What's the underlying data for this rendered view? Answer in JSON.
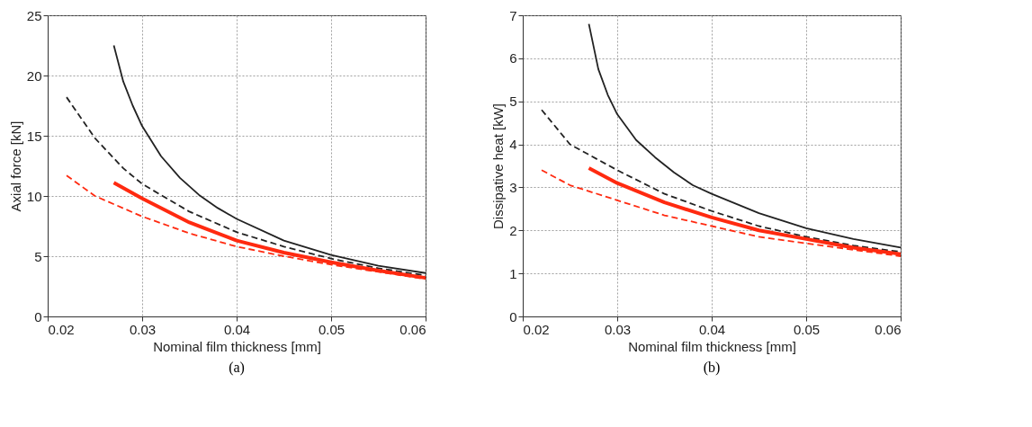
{
  "chart_data": [
    {
      "type": "line",
      "title": "(a)",
      "xlabel": "Nominal film thickness [mm]",
      "ylabel": "Axial force [kN]",
      "xlim": [
        0.02,
        0.06
      ],
      "xticks": [
        0.02,
        0.03,
        0.04,
        0.05,
        0.06
      ],
      "ylim": [
        0,
        25
      ],
      "yticks": [
        0,
        5,
        10,
        15,
        20,
        25
      ],
      "grid": true,
      "series": [
        {
          "color": "#222222",
          "line_style": "solid",
          "x": [
            0.027,
            0.028,
            0.029,
            0.03,
            0.032,
            0.034,
            0.036,
            0.038,
            0.04,
            0.045,
            0.05,
            0.055,
            0.06
          ],
          "values": [
            22.5,
            19.5,
            17.5,
            15.8,
            13.3,
            11.5,
            10.1,
            9.0,
            8.1,
            6.3,
            5.1,
            4.2,
            3.6
          ]
        },
        {
          "color": "#222222",
          "line_style": "dashed",
          "x": [
            0.022,
            0.025,
            0.028,
            0.03,
            0.035,
            0.04,
            0.045,
            0.05,
            0.055,
            0.06
          ],
          "values": [
            18.2,
            14.8,
            12.3,
            11.0,
            8.7,
            7.0,
            5.8,
            4.8,
            4.0,
            3.4
          ]
        },
        {
          "color": "#ff2a10",
          "line_style": "solid",
          "x": [
            0.027,
            0.03,
            0.035,
            0.04,
            0.045,
            0.05,
            0.055,
            0.06
          ],
          "values": [
            11.1,
            9.8,
            7.8,
            6.3,
            5.3,
            4.5,
            3.8,
            3.2
          ]
        },
        {
          "color": "#ff2a10",
          "line_style": "dashed",
          "x": [
            0.022,
            0.025,
            0.03,
            0.035,
            0.04,
            0.045,
            0.05,
            0.055,
            0.06
          ],
          "values": [
            11.7,
            10.0,
            8.3,
            6.9,
            5.8,
            5.0,
            4.3,
            3.7,
            3.1
          ]
        }
      ]
    },
    {
      "type": "line",
      "title": "(b)",
      "xlabel": "Nominal film thickness [mm]",
      "ylabel": "Dissipative heat [kW]",
      "xlim": [
        0.02,
        0.06
      ],
      "xticks": [
        0.02,
        0.03,
        0.04,
        0.05,
        0.06
      ],
      "ylim": [
        0,
        7
      ],
      "yticks": [
        0,
        1,
        2,
        3,
        4,
        5,
        6,
        7
      ],
      "grid": true,
      "series": [
        {
          "color": "#222222",
          "line_style": "solid",
          "x": [
            0.027,
            0.028,
            0.029,
            0.03,
            0.032,
            0.034,
            0.036,
            0.038,
            0.04,
            0.045,
            0.05,
            0.055,
            0.06
          ],
          "values": [
            6.8,
            5.75,
            5.15,
            4.7,
            4.1,
            3.7,
            3.35,
            3.05,
            2.85,
            2.4,
            2.05,
            1.8,
            1.6
          ]
        },
        {
          "color": "#222222",
          "line_style": "dashed",
          "x": [
            0.022,
            0.025,
            0.03,
            0.035,
            0.04,
            0.045,
            0.05,
            0.055,
            0.06
          ],
          "values": [
            4.8,
            4.0,
            3.4,
            2.85,
            2.45,
            2.1,
            1.85,
            1.65,
            1.5
          ]
        },
        {
          "color": "#ff2a10",
          "line_style": "solid",
          "x": [
            0.027,
            0.03,
            0.035,
            0.04,
            0.045,
            0.05,
            0.055,
            0.06
          ],
          "values": [
            3.45,
            3.1,
            2.65,
            2.3,
            2.0,
            1.8,
            1.6,
            1.45
          ]
        },
        {
          "color": "#ff2a10",
          "line_style": "dashed",
          "x": [
            0.022,
            0.025,
            0.03,
            0.035,
            0.04,
            0.045,
            0.05,
            0.055,
            0.06
          ],
          "values": [
            3.4,
            3.05,
            2.7,
            2.35,
            2.1,
            1.85,
            1.7,
            1.55,
            1.4
          ]
        }
      ]
    }
  ]
}
